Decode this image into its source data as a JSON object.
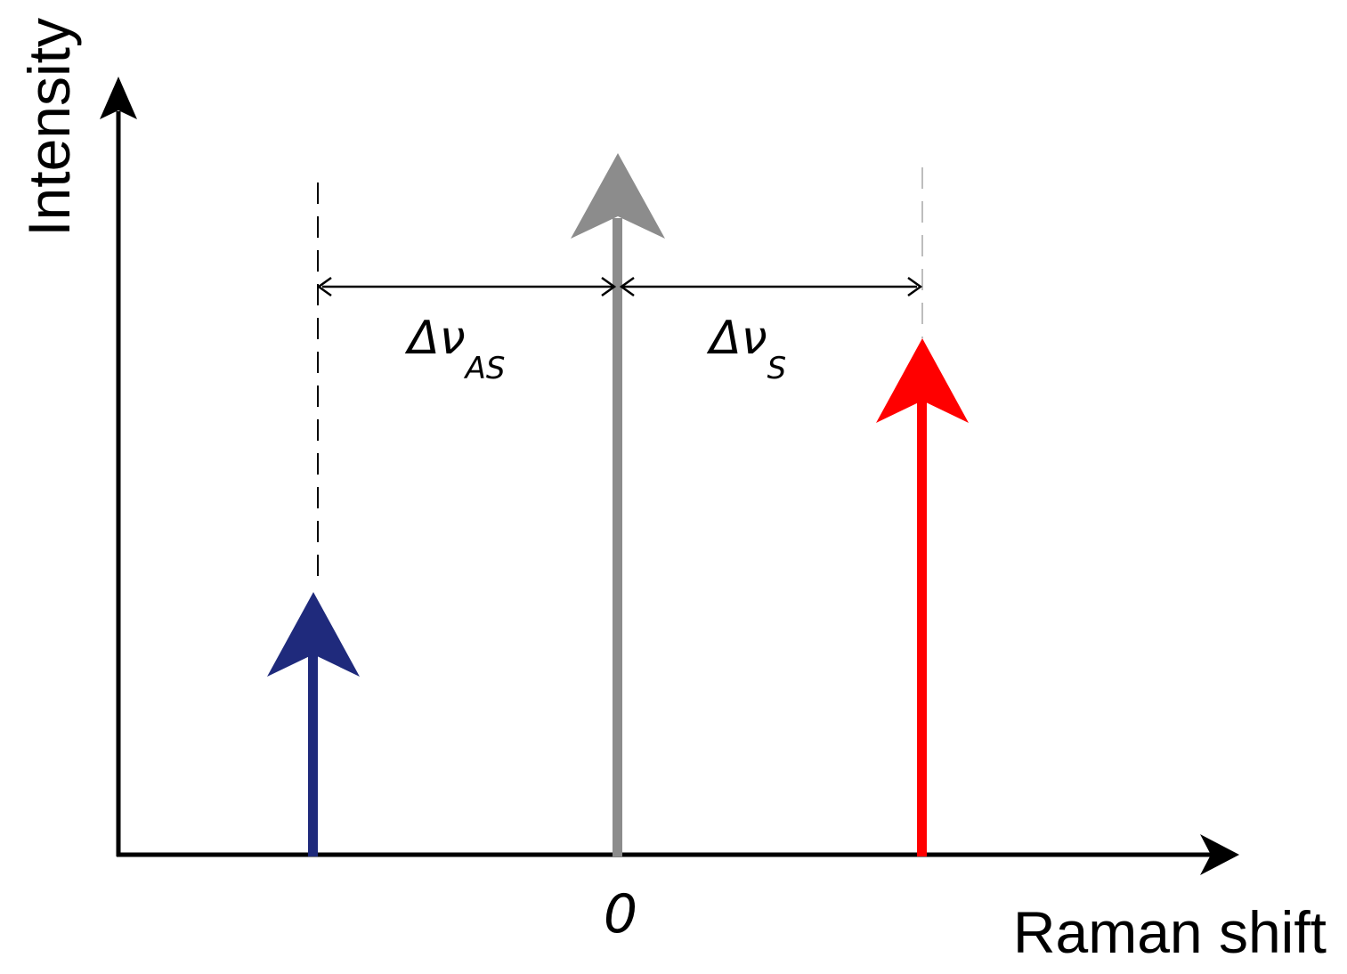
{
  "axes": {
    "y_label": "Intensity",
    "x_label": "Raman shift",
    "origin_label": "0"
  },
  "lines": {
    "anti_stokes": {
      "color": "#1f2a7c",
      "relative_intensity": 0.43
    },
    "rayleigh": {
      "color": "#8c8c8c",
      "relative_intensity": 1.0
    },
    "stokes": {
      "color": "#ff0000",
      "relative_intensity": 0.74
    }
  },
  "shifts": {
    "anti_stokes": {
      "symbol": "Δν",
      "subscript": "AS"
    },
    "stokes": {
      "symbol": "Δν",
      "subscript": "S"
    }
  },
  "colors": {
    "axis": "#000000",
    "dashed_anti_stokes": "#000000",
    "dashed_stokes": "#bdbdbd",
    "background": "#ffffff"
  }
}
